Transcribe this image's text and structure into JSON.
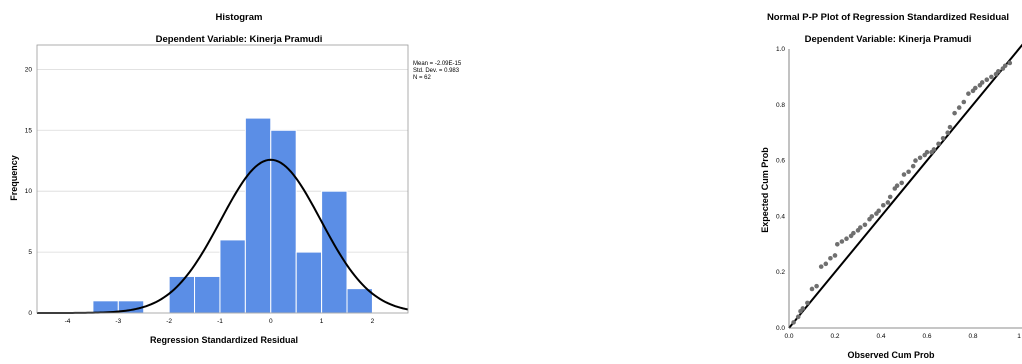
{
  "chart_data": [
    {
      "type": "bar",
      "title": "Histogram",
      "subtitle": "Dependent Variable: Kinerja Pramudi",
      "xlabel": "Regression Standardized Residual",
      "ylabel": "Frequency",
      "xlim": [
        -4.6,
        2.7
      ],
      "ylim": [
        0,
        22
      ],
      "xticks": [
        -4,
        -3,
        -2,
        -1,
        0,
        1,
        2
      ],
      "yticks": [
        0,
        5,
        10,
        15,
        20
      ],
      "grid": true,
      "bin_width": 0.5,
      "bins": [
        {
          "start": -3.5,
          "count": 1
        },
        {
          "start": -3.0,
          "count": 1
        },
        {
          "start": -2.0,
          "count": 3
        },
        {
          "start": -1.5,
          "count": 3
        },
        {
          "start": -1.0,
          "count": 6
        },
        {
          "start": -0.5,
          "count": 16
        },
        {
          "start": 0.0,
          "count": 15
        },
        {
          "start": 0.5,
          "count": 5
        },
        {
          "start": 1.0,
          "count": 10
        },
        {
          "start": 1.5,
          "count": 2
        }
      ],
      "stats": [
        "Mean = -2.09E-15",
        "Std. Dev. = 0.983",
        "N = 62"
      ],
      "normal_curve": {
        "mean": 0,
        "sd": 0.983,
        "n": 62
      },
      "colors": {
        "bar": "#5b8ee6",
        "bar_edge": "#ffffff",
        "curve": "#000000",
        "grid": "#d9d9d9"
      }
    },
    {
      "type": "scatter",
      "title": "Normal P-P Plot of Regression Standardized Residual",
      "subtitle": "Dependent Variable: Kinerja Pramudi",
      "xlabel": "Observed Cum Prob",
      "ylabel": "Expected Cum Prob",
      "xlim": [
        0,
        1
      ],
      "ylim": [
        0,
        1
      ],
      "xticks": [
        "0.0",
        "0.2",
        "0.4",
        "0.6",
        "0.8",
        "1"
      ],
      "yticks": [
        "0.0",
        "0.2",
        "0.4",
        "0.6",
        "0.8",
        "1.0"
      ],
      "reference_line": [
        [
          0,
          0
        ],
        [
          1,
          1
        ]
      ],
      "points": {
        "x": [
          0.02,
          0.04,
          0.05,
          0.06,
          0.08,
          0.1,
          0.12,
          0.14,
          0.16,
          0.18,
          0.2,
          0.21,
          0.23,
          0.25,
          0.27,
          0.28,
          0.3,
          0.31,
          0.33,
          0.35,
          0.36,
          0.38,
          0.39,
          0.41,
          0.43,
          0.44,
          0.46,
          0.47,
          0.49,
          0.5,
          0.52,
          0.54,
          0.55,
          0.57,
          0.59,
          0.6,
          0.62,
          0.63,
          0.65,
          0.67,
          0.69,
          0.7,
          0.72,
          0.74,
          0.76,
          0.78,
          0.8,
          0.81,
          0.83,
          0.84,
          0.86,
          0.88,
          0.9,
          0.91,
          0.93,
          0.94,
          0.96
        ],
        "y": [
          0.02,
          0.04,
          0.06,
          0.07,
          0.09,
          0.14,
          0.15,
          0.22,
          0.23,
          0.25,
          0.26,
          0.3,
          0.31,
          0.32,
          0.33,
          0.34,
          0.35,
          0.36,
          0.37,
          0.39,
          0.4,
          0.41,
          0.42,
          0.44,
          0.45,
          0.47,
          0.5,
          0.51,
          0.52,
          0.55,
          0.56,
          0.58,
          0.6,
          0.61,
          0.62,
          0.63,
          0.63,
          0.64,
          0.66,
          0.68,
          0.7,
          0.72,
          0.77,
          0.79,
          0.81,
          0.84,
          0.85,
          0.86,
          0.87,
          0.88,
          0.89,
          0.9,
          0.91,
          0.92,
          0.93,
          0.94,
          0.95
        ]
      },
      "colors": {
        "point": "#6f6f6f",
        "line": "#000000"
      }
    }
  ]
}
